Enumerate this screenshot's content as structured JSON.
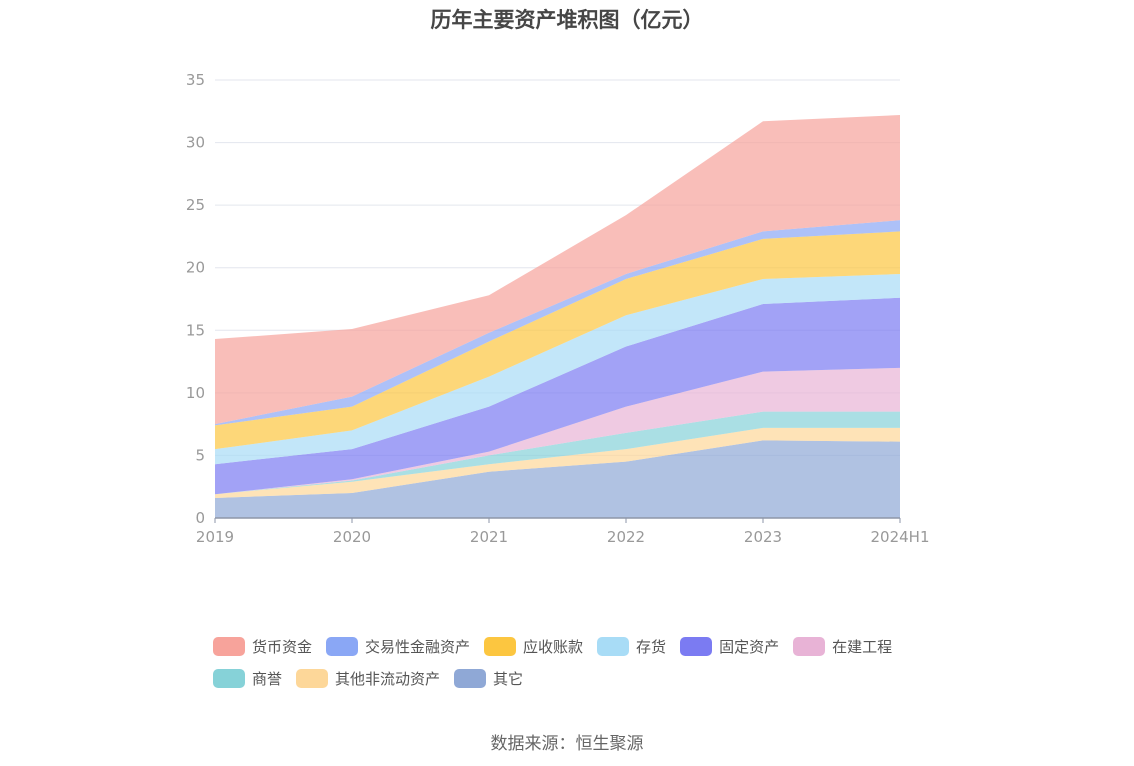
{
  "title": "历年主要资产堆积图（亿元）",
  "source": "数据来源：恒生聚源",
  "chart_data": {
    "type": "area",
    "stacked": true,
    "title": "历年主要资产堆积图（亿元）",
    "xlabel": "",
    "ylabel": "",
    "categories": [
      "2019",
      "2020",
      "2021",
      "2022",
      "2023",
      "2024H1"
    ],
    "ylim": [
      0,
      35
    ],
    "yticks": [
      0,
      5,
      10,
      15,
      20,
      25,
      30,
      35
    ],
    "grid": true,
    "legend_position": "bottom",
    "series": [
      {
        "name": "其它",
        "color": "#8fa8d6",
        "values": [
          1.6,
          2.0,
          3.7,
          4.5,
          6.2,
          6.1
        ]
      },
      {
        "name": "其他非流动资产",
        "color": "#fdd799",
        "values": [
          0.3,
          0.9,
          0.6,
          1.0,
          1.0,
          1.1
        ]
      },
      {
        "name": "商誉",
        "color": "#86d2d8",
        "values": [
          0.0,
          0.1,
          0.7,
          1.3,
          1.3,
          1.3
        ]
      },
      {
        "name": "在建工程",
        "color": "#e8b3d6",
        "values": [
          0.0,
          0.1,
          0.3,
          2.1,
          3.2,
          3.5
        ]
      },
      {
        "name": "固定资产",
        "color": "#7b7bf2",
        "values": [
          2.4,
          2.4,
          3.6,
          4.8,
          5.4,
          5.6
        ]
      },
      {
        "name": "存货",
        "color": "#a8dcf6",
        "values": [
          1.2,
          1.5,
          2.4,
          2.5,
          2.0,
          1.9
        ]
      },
      {
        "name": "应收账款",
        "color": "#fcc640",
        "values": [
          1.9,
          1.9,
          2.8,
          2.9,
          3.2,
          3.4
        ]
      },
      {
        "name": "交易性金融资产",
        "color": "#8aa7f5",
        "values": [
          0.1,
          0.8,
          0.7,
          0.4,
          0.6,
          0.9
        ]
      },
      {
        "name": "货币资金",
        "color": "#f7a39b",
        "values": [
          6.8,
          5.4,
          3.0,
          4.7,
          8.8,
          8.4
        ]
      }
    ]
  },
  "legend_rows": [
    [
      "货币资金",
      "交易性金融资产",
      "应收账款",
      "存货",
      "固定资产",
      "在建工程"
    ],
    [
      "商誉",
      "其他非流动资产",
      "其它"
    ]
  ]
}
